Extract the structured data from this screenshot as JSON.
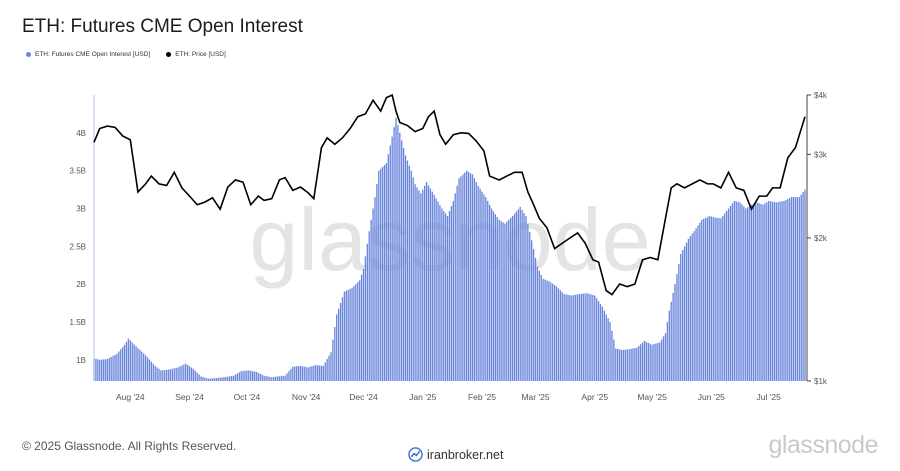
{
  "title": "ETH: Futures CME Open Interest",
  "legend": [
    {
      "label": "ETH: Futures CME Open Interest [USD]",
      "color": "#6a86dc"
    },
    {
      "label": "ETH: Price [USD]",
      "color": "#000000"
    }
  ],
  "watermark": "glassnode",
  "footer": {
    "copyright": "© 2025 Glassnode. All Rights Reserved.",
    "logo": "glassnode",
    "broker": "iranbroker.net"
  },
  "chart_data": {
    "type": "bar",
    "x_range": [
      "2024-07-13",
      "2025-07-20"
    ],
    "x_ticks": [
      {
        "date": "2024-08-01",
        "label": "Aug '24"
      },
      {
        "date": "2024-09-01",
        "label": "Sep '24"
      },
      {
        "date": "2024-10-01",
        "label": "Oct '24"
      },
      {
        "date": "2024-11-01",
        "label": "Nov '24"
      },
      {
        "date": "2024-12-01",
        "label": "Dec '24"
      },
      {
        "date": "2025-01-01",
        "label": "Jan '25"
      },
      {
        "date": "2025-02-01",
        "label": "Feb '25"
      },
      {
        "date": "2025-03-01",
        "label": "Mar '25"
      },
      {
        "date": "2025-04-01",
        "label": "Apr '25"
      },
      {
        "date": "2025-05-01",
        "label": "May '25"
      },
      {
        "date": "2025-06-01",
        "label": "Jun '25"
      },
      {
        "date": "2025-07-01",
        "label": "Jul '25"
      }
    ],
    "left_axis": {
      "ylim": [
        720000000,
        4500000000
      ],
      "ticks": [
        {
          "value": 1000000000,
          "label": "1B"
        },
        {
          "value": 1500000000,
          "label": "1.5B"
        },
        {
          "value": 2000000000,
          "label": "2B"
        },
        {
          "value": 2500000000,
          "label": "2.5B"
        },
        {
          "value": 3000000000,
          "label": "3B"
        },
        {
          "value": 3500000000,
          "label": "3.5B"
        },
        {
          "value": 4000000000,
          "label": "4B"
        }
      ]
    },
    "right_axis": {
      "scale": "log",
      "ylim": [
        1000,
        4000
      ],
      "ticks": [
        {
          "value": 1000,
          "label": "$1k"
        },
        {
          "value": 2000,
          "label": "$2k"
        },
        {
          "value": 3000,
          "label": "$3k"
        },
        {
          "value": 4000,
          "label": "$4k"
        }
      ]
    },
    "series": [
      {
        "name": "ETH: Futures CME Open Interest [USD]",
        "type": "bar",
        "axis": "left",
        "color": "#6a86dc",
        "points": [
          [
            "2024-07-13",
            1020000000
          ],
          [
            "2024-07-16",
            1000000000
          ],
          [
            "2024-07-20",
            1010000000
          ],
          [
            "2024-07-25",
            1080000000
          ],
          [
            "2024-07-29",
            1200000000
          ],
          [
            "2024-07-31",
            1280000000
          ],
          [
            "2024-08-04",
            1180000000
          ],
          [
            "2024-08-09",
            1060000000
          ],
          [
            "2024-08-14",
            920000000
          ],
          [
            "2024-08-17",
            860000000
          ],
          [
            "2024-08-21",
            870000000
          ],
          [
            "2024-08-26",
            900000000
          ],
          [
            "2024-08-30",
            950000000
          ],
          [
            "2024-09-03",
            880000000
          ],
          [
            "2024-09-07",
            780000000
          ],
          [
            "2024-09-11",
            750000000
          ],
          [
            "2024-09-15",
            760000000
          ],
          [
            "2024-09-19",
            770000000
          ],
          [
            "2024-09-24",
            790000000
          ],
          [
            "2024-09-28",
            850000000
          ],
          [
            "2024-10-02",
            860000000
          ],
          [
            "2024-10-06",
            840000000
          ],
          [
            "2024-10-10",
            790000000
          ],
          [
            "2024-10-14",
            770000000
          ],
          [
            "2024-10-17",
            780000000
          ],
          [
            "2024-10-21",
            790000000
          ],
          [
            "2024-10-25",
            910000000
          ],
          [
            "2024-10-29",
            920000000
          ],
          [
            "2024-11-02",
            900000000
          ],
          [
            "2024-11-06",
            930000000
          ],
          [
            "2024-11-10",
            920000000
          ],
          [
            "2024-11-14",
            1100000000
          ],
          [
            "2024-11-17",
            1600000000
          ],
          [
            "2024-11-21",
            1900000000
          ],
          [
            "2024-11-25",
            1950000000
          ],
          [
            "2024-11-29",
            2050000000
          ],
          [
            "2024-12-01",
            2200000000
          ],
          [
            "2024-12-04",
            2700000000
          ],
          [
            "2024-12-07",
            3150000000
          ],
          [
            "2024-12-09",
            3500000000
          ],
          [
            "2024-12-13",
            3600000000
          ],
          [
            "2024-12-16",
            3950000000
          ],
          [
            "2024-12-18",
            4200000000
          ],
          [
            "2024-12-20",
            4000000000
          ],
          [
            "2024-12-23",
            3700000000
          ],
          [
            "2024-12-26",
            3500000000
          ],
          [
            "2024-12-28",
            3320000000
          ],
          [
            "2024-12-31",
            3200000000
          ],
          [
            "2025-01-03",
            3350000000
          ],
          [
            "2025-01-07",
            3180000000
          ],
          [
            "2025-01-11",
            3000000000
          ],
          [
            "2025-01-14",
            2900000000
          ],
          [
            "2025-01-17",
            3100000000
          ],
          [
            "2025-01-20",
            3400000000
          ],
          [
            "2025-01-24",
            3500000000
          ],
          [
            "2025-01-27",
            3450000000
          ],
          [
            "2025-01-30",
            3300000000
          ],
          [
            "2025-02-03",
            3150000000
          ],
          [
            "2025-02-06",
            3000000000
          ],
          [
            "2025-02-10",
            2850000000
          ],
          [
            "2025-02-13",
            2800000000
          ],
          [
            "2025-02-17",
            2900000000
          ],
          [
            "2025-02-21",
            3020000000
          ],
          [
            "2025-02-24",
            2900000000
          ],
          [
            "2025-02-27",
            2580000000
          ],
          [
            "2025-03-02",
            2230000000
          ],
          [
            "2025-03-05",
            2070000000
          ],
          [
            "2025-03-08",
            2040000000
          ],
          [
            "2025-03-12",
            1970000000
          ],
          [
            "2025-03-16",
            1870000000
          ],
          [
            "2025-03-20",
            1850000000
          ],
          [
            "2025-03-24",
            1870000000
          ],
          [
            "2025-03-28",
            1880000000
          ],
          [
            "2025-04-01",
            1850000000
          ],
          [
            "2025-04-05",
            1700000000
          ],
          [
            "2025-04-09",
            1500000000
          ],
          [
            "2025-04-12",
            1150000000
          ],
          [
            "2025-04-15",
            1130000000
          ],
          [
            "2025-04-19",
            1140000000
          ],
          [
            "2025-04-23",
            1160000000
          ],
          [
            "2025-04-27",
            1250000000
          ],
          [
            "2025-05-01",
            1200000000
          ],
          [
            "2025-05-05",
            1230000000
          ],
          [
            "2025-05-08",
            1350000000
          ],
          [
            "2025-05-10",
            1650000000
          ],
          [
            "2025-05-13",
            2000000000
          ],
          [
            "2025-05-16",
            2400000000
          ],
          [
            "2025-05-20",
            2600000000
          ],
          [
            "2025-05-23",
            2700000000
          ],
          [
            "2025-05-27",
            2850000000
          ],
          [
            "2025-05-31",
            2900000000
          ],
          [
            "2025-06-03",
            2880000000
          ],
          [
            "2025-06-06",
            2870000000
          ],
          [
            "2025-06-10",
            3000000000
          ],
          [
            "2025-06-13",
            3100000000
          ],
          [
            "2025-06-16",
            3080000000
          ],
          [
            "2025-06-19",
            3000000000
          ],
          [
            "2025-06-22",
            3050000000
          ],
          [
            "2025-06-25",
            3080000000
          ],
          [
            "2025-06-28",
            3050000000
          ],
          [
            "2025-07-01",
            3100000000
          ],
          [
            "2025-07-05",
            3080000000
          ],
          [
            "2025-07-09",
            3100000000
          ],
          [
            "2025-07-13",
            3150000000
          ],
          [
            "2025-07-17",
            3150000000
          ],
          [
            "2025-07-20",
            3250000000
          ]
        ]
      },
      {
        "name": "ETH: Price [USD]",
        "type": "line",
        "axis": "right",
        "color": "#000000",
        "points": [
          [
            "2024-07-13",
            3180
          ],
          [
            "2024-07-16",
            3400
          ],
          [
            "2024-07-20",
            3440
          ],
          [
            "2024-07-24",
            3420
          ],
          [
            "2024-07-28",
            3280
          ],
          [
            "2024-08-01",
            3220
          ],
          [
            "2024-08-05",
            2500
          ],
          [
            "2024-08-09",
            2600
          ],
          [
            "2024-08-12",
            2700
          ],
          [
            "2024-08-16",
            2600
          ],
          [
            "2024-08-20",
            2580
          ],
          [
            "2024-08-24",
            2750
          ],
          [
            "2024-08-28",
            2550
          ],
          [
            "2024-09-01",
            2450
          ],
          [
            "2024-09-05",
            2350
          ],
          [
            "2024-09-09",
            2380
          ],
          [
            "2024-09-13",
            2430
          ],
          [
            "2024-09-17",
            2300
          ],
          [
            "2024-09-21",
            2560
          ],
          [
            "2024-09-25",
            2650
          ],
          [
            "2024-09-29",
            2620
          ],
          [
            "2024-10-03",
            2350
          ],
          [
            "2024-10-07",
            2450
          ],
          [
            "2024-10-10",
            2400
          ],
          [
            "2024-10-14",
            2420
          ],
          [
            "2024-10-18",
            2650
          ],
          [
            "2024-10-21",
            2680
          ],
          [
            "2024-10-25",
            2520
          ],
          [
            "2024-10-29",
            2560
          ],
          [
            "2024-11-02",
            2490
          ],
          [
            "2024-11-05",
            2420
          ],
          [
            "2024-11-09",
            3100
          ],
          [
            "2024-11-12",
            3250
          ],
          [
            "2024-11-16",
            3150
          ],
          [
            "2024-11-20",
            3250
          ],
          [
            "2024-11-24",
            3400
          ],
          [
            "2024-11-28",
            3600
          ],
          [
            "2024-12-02",
            3650
          ],
          [
            "2024-12-06",
            3900
          ],
          [
            "2024-12-10",
            3700
          ],
          [
            "2024-12-13",
            3950
          ],
          [
            "2024-12-16",
            4000
          ],
          [
            "2024-12-18",
            3700
          ],
          [
            "2024-12-20",
            3500
          ],
          [
            "2024-12-24",
            3450
          ],
          [
            "2024-12-28",
            3350
          ],
          [
            "2025-01-01",
            3400
          ],
          [
            "2025-01-04",
            3600
          ],
          [
            "2025-01-07",
            3700
          ],
          [
            "2025-01-10",
            3300
          ],
          [
            "2025-01-13",
            3150
          ],
          [
            "2025-01-17",
            3300
          ],
          [
            "2025-01-21",
            3330
          ],
          [
            "2025-01-25",
            3320
          ],
          [
            "2025-01-29",
            3200
          ],
          [
            "2025-02-02",
            3050
          ],
          [
            "2025-02-05",
            2700
          ],
          [
            "2025-02-10",
            2650
          ],
          [
            "2025-02-14",
            2700
          ],
          [
            "2025-02-18",
            2750
          ],
          [
            "2025-02-22",
            2750
          ],
          [
            "2025-02-25",
            2500
          ],
          [
            "2025-02-28",
            2350
          ],
          [
            "2025-03-03",
            2200
          ],
          [
            "2025-03-07",
            2100
          ],
          [
            "2025-03-11",
            1900
          ],
          [
            "2025-03-15",
            1950
          ],
          [
            "2025-03-19",
            2000
          ],
          [
            "2025-03-23",
            2050
          ],
          [
            "2025-03-27",
            1950
          ],
          [
            "2025-03-31",
            1800
          ],
          [
            "2025-04-03",
            1780
          ],
          [
            "2025-04-07",
            1550
          ],
          [
            "2025-04-10",
            1520
          ],
          [
            "2025-04-14",
            1600
          ],
          [
            "2025-04-18",
            1580
          ],
          [
            "2025-04-22",
            1600
          ],
          [
            "2025-04-26",
            1800
          ],
          [
            "2025-04-30",
            1820
          ],
          [
            "2025-05-04",
            1800
          ],
          [
            "2025-05-08",
            2200
          ],
          [
            "2025-05-11",
            2550
          ],
          [
            "2025-05-14",
            2600
          ],
          [
            "2025-05-18",
            2550
          ],
          [
            "2025-05-22",
            2600
          ],
          [
            "2025-05-26",
            2650
          ],
          [
            "2025-05-30",
            2600
          ],
          [
            "2025-06-02",
            2600
          ],
          [
            "2025-06-06",
            2550
          ],
          [
            "2025-06-10",
            2750
          ],
          [
            "2025-06-14",
            2550
          ],
          [
            "2025-06-18",
            2520
          ],
          [
            "2025-06-22",
            2300
          ],
          [
            "2025-06-26",
            2450
          ],
          [
            "2025-06-30",
            2450
          ],
          [
            "2025-07-03",
            2550
          ],
          [
            "2025-07-07",
            2550
          ],
          [
            "2025-07-11",
            2950
          ],
          [
            "2025-07-15",
            3100
          ],
          [
            "2025-07-20",
            3600
          ]
        ]
      }
    ]
  }
}
